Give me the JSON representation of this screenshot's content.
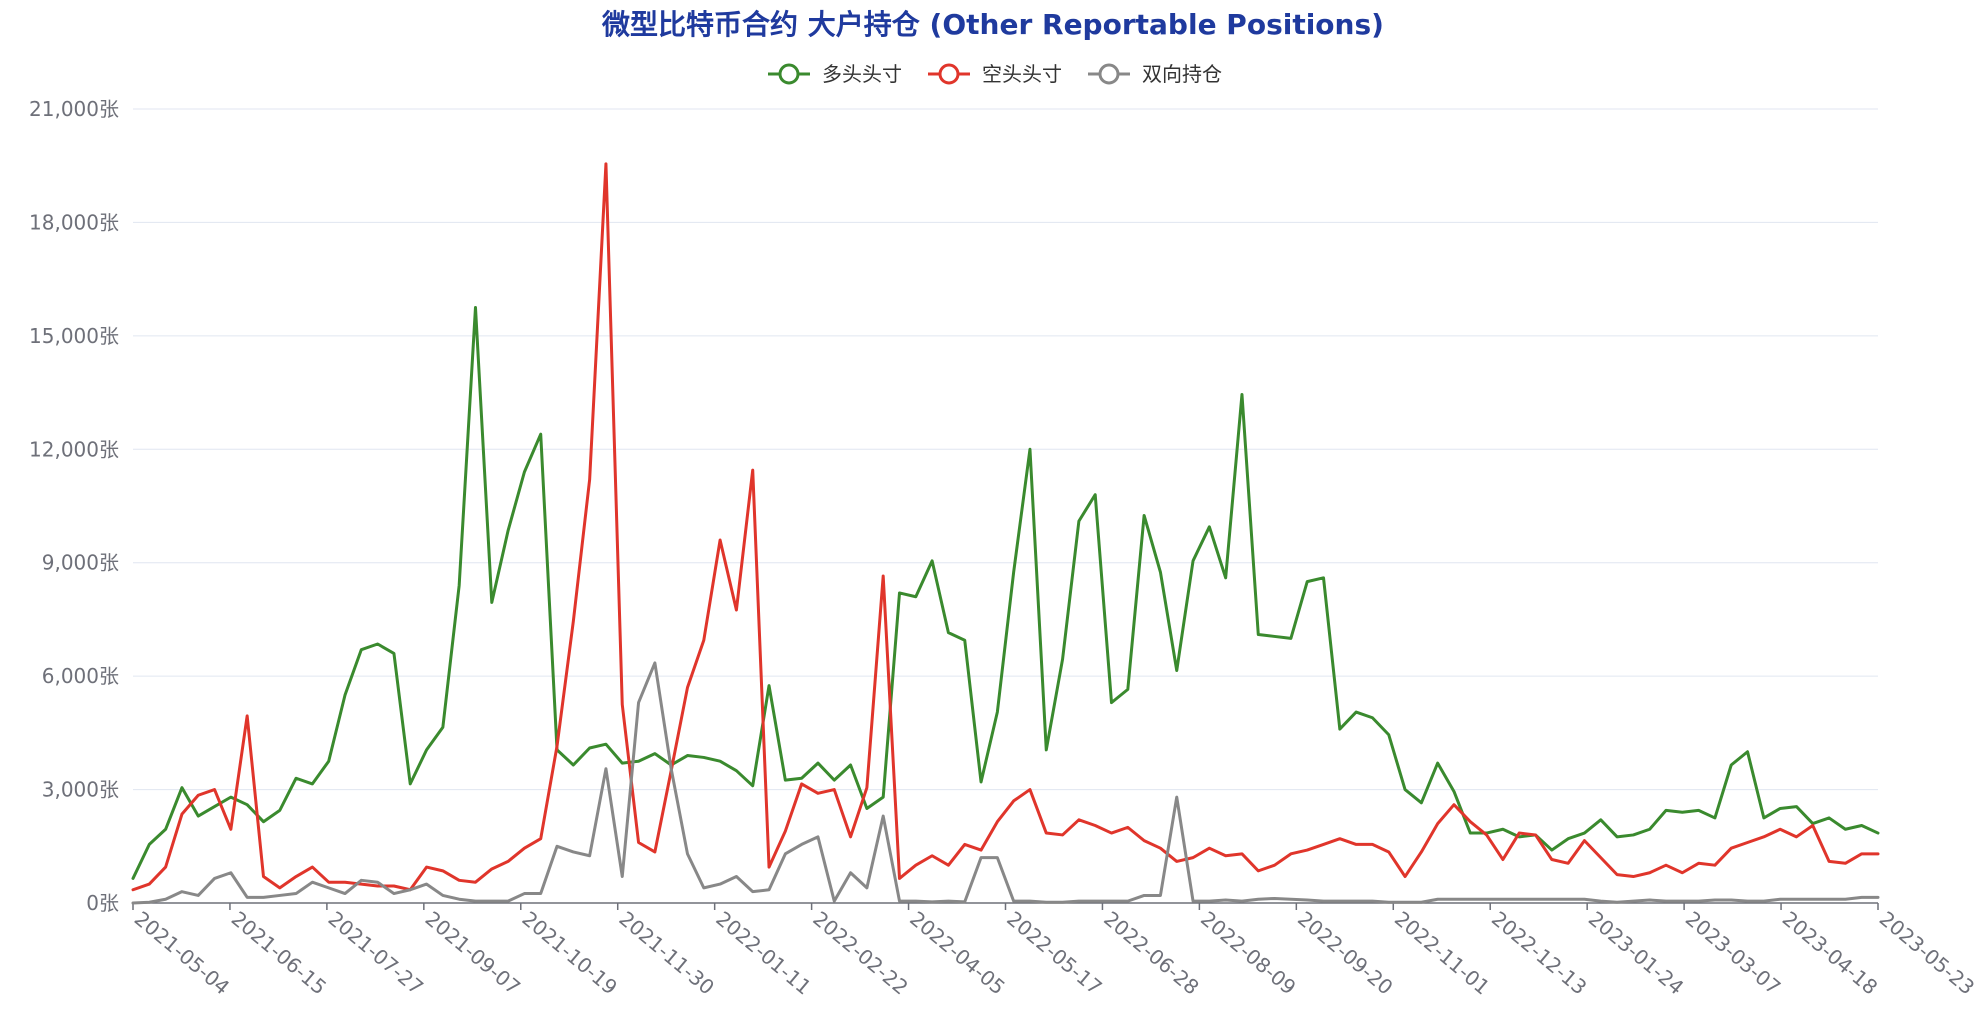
{
  "chart_data": {
    "type": "line",
    "title": "微型比特币合约 大户持仓 (Other Reportable Positions)",
    "ylim": [
      0,
      21000
    ],
    "yticks": [
      0,
      3000,
      6000,
      9000,
      12000,
      15000,
      18000,
      21000
    ],
    "ytick_labels": [
      "0张",
      "3,000张",
      "6,000张",
      "9,000张",
      "12,000张",
      "15,000张",
      "18,000张",
      "21,000张"
    ],
    "xtick_labels": [
      "2021-05-04",
      "2021-06-15",
      "2021-07-27",
      "2021-09-07",
      "2021-10-19",
      "2021-11-30",
      "2022-01-11",
      "2022-02-22",
      "2022-04-05",
      "2022-05-17",
      "2022-06-28",
      "2022-08-09",
      "2022-09-20",
      "2022-11-01",
      "2022-12-13",
      "2023-01-24",
      "2023-03-07",
      "2023-04-18",
      "2023-05-23"
    ],
    "point_count": 108,
    "legend_position": "top-center",
    "grid": true,
    "series": [
      {
        "name": "多头头寸",
        "color": "#3a8a2e",
        "values": [
          650,
          1550,
          1950,
          3050,
          2300,
          2550,
          2800,
          2600,
          2150,
          2450,
          3300,
          3150,
          3750,
          5500,
          6700,
          6850,
          6600,
          3150,
          4050,
          4650,
          8400,
          15750,
          7950,
          9850,
          11400,
          12400,
          4050,
          3650,
          4100,
          4200,
          3700,
          3750,
          3950,
          3650,
          3900,
          3850,
          3750,
          3500,
          3100,
          5750,
          3250,
          3300,
          3700,
          3250,
          3650,
          2500,
          2800,
          8200,
          8100,
          9050,
          7150,
          6950,
          3200,
          5050,
          8750,
          12000,
          4050,
          6450,
          10100,
          10800,
          5300,
          5650,
          10250,
          8750,
          6150,
          9050,
          9950,
          8600,
          13450,
          7100,
          7050,
          7000,
          8500,
          8600,
          4600,
          5050,
          4900,
          4450,
          3000,
          2650,
          3700,
          2950,
          1850,
          1850,
          1950,
          1750,
          1800,
          1400,
          1700,
          1850,
          2200,
          1750,
          1800,
          1950,
          2450,
          2400,
          2450,
          2250,
          3650,
          4000,
          2250,
          2500,
          2550,
          2100,
          2250,
          1950,
          2050,
          1850
        ]
      },
      {
        "name": "空头头寸",
        "color": "#e0352b",
        "values": [
          350,
          500,
          950,
          2350,
          2850,
          3000,
          1950,
          4950,
          700,
          400,
          700,
          950,
          550,
          550,
          500,
          450,
          450,
          350,
          950,
          850,
          600,
          550,
          900,
          1100,
          1450,
          1700,
          4150,
          7450,
          11200,
          19550,
          5250,
          1600,
          1350,
          3500,
          5700,
          6950,
          9600,
          7750,
          11450,
          950,
          1900,
          3150,
          2900,
          3000,
          1750,
          3050,
          8650,
          650,
          1000,
          1250,
          1000,
          1550,
          1400,
          2150,
          2700,
          3000,
          1850,
          1800,
          2200,
          2050,
          1850,
          2000,
          1650,
          1450,
          1100,
          1200,
          1450,
          1250,
          1300,
          850,
          1000,
          1300,
          1400,
          1550,
          1700,
          1550,
          1550,
          1350,
          700,
          1350,
          2100,
          2600,
          2150,
          1800,
          1150,
          1850,
          1800,
          1150,
          1050,
          1650,
          1200,
          750,
          700,
          800,
          1000,
          800,
          1050,
          1000,
          1450,
          1600,
          1750,
          1950,
          1750,
          2050,
          1100,
          1050,
          1300,
          1300
        ]
      },
      {
        "name": "双向持仓",
        "color": "#888888",
        "values": [
          0,
          20,
          100,
          300,
          200,
          650,
          800,
          150,
          150,
          200,
          250,
          550,
          400,
          250,
          600,
          550,
          250,
          350,
          500,
          200,
          100,
          50,
          50,
          50,
          250,
          250,
          1500,
          1350,
          1250,
          3550,
          700,
          5300,
          6350,
          3550,
          1300,
          400,
          500,
          700,
          300,
          350,
          1300,
          1550,
          1750,
          50,
          800,
          400,
          2300,
          50,
          50,
          30,
          50,
          30,
          1200,
          1200,
          50,
          50,
          20,
          20,
          50,
          50,
          50,
          50,
          200,
          200,
          2800,
          50,
          50,
          80,
          50,
          100,
          120,
          100,
          80,
          50,
          50,
          50,
          50,
          20,
          20,
          20,
          100,
          100,
          100,
          100,
          100,
          100,
          100,
          100,
          100,
          100,
          50,
          20,
          50,
          80,
          50,
          50,
          50,
          80,
          80,
          50,
          50,
          100,
          100,
          100,
          100,
          100,
          150,
          150
        ]
      }
    ]
  }
}
